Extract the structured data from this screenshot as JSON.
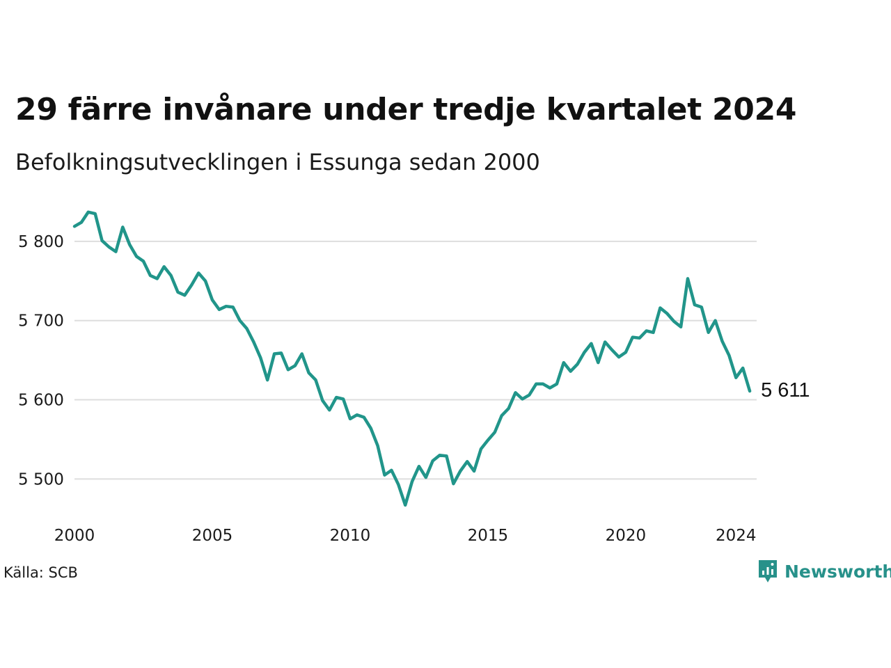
{
  "header": {
    "title": "29 färre invånare under tredje kvartalet 2024",
    "subtitle": "Befolkningsutvecklingen i Essunga sedan 2000"
  },
  "footer": {
    "source": "Källa: SCB",
    "brand": "Newsworthy"
  },
  "colors": {
    "line": "#21958a",
    "grid": "#dedede",
    "brand": "#27918a"
  },
  "chart_data": {
    "type": "line",
    "title": "29 färre invånare under tredje kvartalet 2024",
    "subtitle": "Befolkningsutvecklingen i Essunga sedan 2000",
    "xlabel": "",
    "ylabel": "",
    "xlim": [
      2000.0,
      2024.75
    ],
    "ylim": [
      5452,
      5850
    ],
    "x_ticks": [
      2000,
      2005,
      2010,
      2015,
      2020,
      2024
    ],
    "x_tick_labels": [
      "2000",
      "2005",
      "2010",
      "2015",
      "2020",
      "2024"
    ],
    "y_ticks": [
      5500,
      5600,
      5700,
      5800
    ],
    "y_tick_labels": [
      "5 500",
      "5 600",
      "5 700",
      "5 800"
    ],
    "grid": "horizontal",
    "legend": "none",
    "end_label": "5 611",
    "series": [
      {
        "x_start": 2000.0,
        "x_step": 0.25,
        "values": [
          5819,
          5824,
          5837,
          5835,
          5801,
          5793,
          5787,
          5818,
          5796,
          5781,
          5775,
          5757,
          5753,
          5768,
          5757,
          5736,
          5732,
          5745,
          5760,
          5750,
          5726,
          5714,
          5718,
          5717,
          5700,
          5690,
          5673,
          5653,
          5625,
          5658,
          5659,
          5638,
          5643,
          5658,
          5634,
          5625,
          5599,
          5587,
          5603,
          5601,
          5576,
          5581,
          5578,
          5564,
          5542,
          5505,
          5511,
          5493,
          5467,
          5497,
          5516,
          5502,
          5523,
          5530,
          5529,
          5494,
          5510,
          5522,
          5510,
          5538,
          5549,
          5559,
          5580,
          5589,
          5609,
          5601,
          5606,
          5620,
          5620,
          5615,
          5620,
          5647,
          5636,
          5645,
          5660,
          5671,
          5647,
          5673,
          5663,
          5654,
          5660,
          5679,
          5678,
          5687,
          5685,
          5716,
          5709,
          5699,
          5692,
          5753,
          5720,
          5717,
          5685,
          5700,
          5674,
          5656,
          5628,
          5640,
          5611
        ]
      }
    ]
  }
}
